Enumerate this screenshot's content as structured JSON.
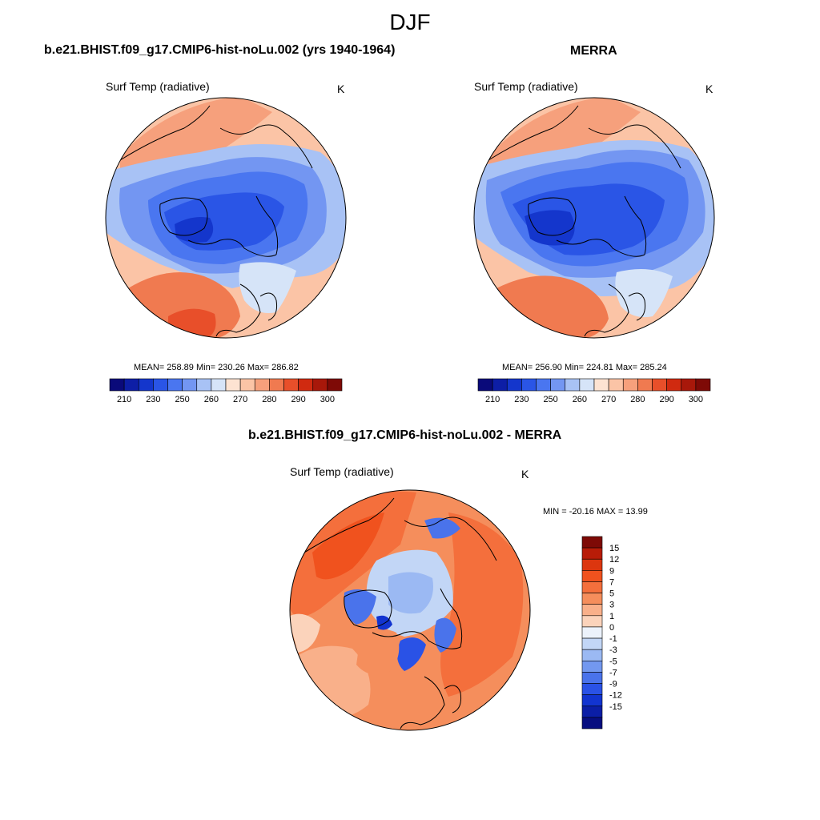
{
  "page": {
    "title": "DJF"
  },
  "panel_model": {
    "title": "b.e21.BHIST.f09_g17.CMIP6-hist-noLu.002 (yrs 1940-1964)",
    "variable": "Surf Temp (radiative)",
    "units": "K",
    "stats": "MEAN= 258.89  Min= 230.26  Max= 286.82"
  },
  "panel_obs": {
    "title": "MERRA",
    "variable": "Surf Temp (radiative)",
    "units": "K",
    "stats": "MEAN= 256.90  Min= 224.81  Max= 285.24"
  },
  "panel_diff": {
    "title": "b.e21.BHIST.f09_g17.CMIP6-hist-noLu.002 - MERRA",
    "variable": "Surf Temp (radiative)",
    "units": "K",
    "stats": "MIN = -20.16 MAX =  13.99"
  },
  "colorbar_abs": {
    "colors": [
      "#0a0a7a",
      "#0d1ea6",
      "#1436cc",
      "#2a55e6",
      "#4a76f0",
      "#7396f2",
      "#a8c2f5",
      "#d6e4f8",
      "#fde3d2",
      "#fbc4a6",
      "#f6a07c",
      "#f07a50",
      "#e84f2a",
      "#d02a10",
      "#a8180a",
      "#7e0a06"
    ],
    "labels": [
      "210",
      "230",
      "250",
      "260",
      "270",
      "280",
      "290",
      "300"
    ]
  },
  "colorbar_diff": {
    "colors": [
      "#7e0a06",
      "#b81c08",
      "#dc360f",
      "#f0521e",
      "#f46f3c",
      "#f58e5c",
      "#f9b08a",
      "#fbd3bb",
      "#ecf2fb",
      "#c2d6f6",
      "#9bb9f3",
      "#7398ef",
      "#4a73eb",
      "#2a52e6",
      "#1234d0",
      "#0b1ea6",
      "#070e80"
    ],
    "labels": [
      "15",
      "12",
      "9",
      "7",
      "5",
      "3",
      "1",
      "0",
      "-1",
      "-3",
      "-5",
      "-7",
      "-9",
      "-12",
      "-15"
    ]
  }
}
